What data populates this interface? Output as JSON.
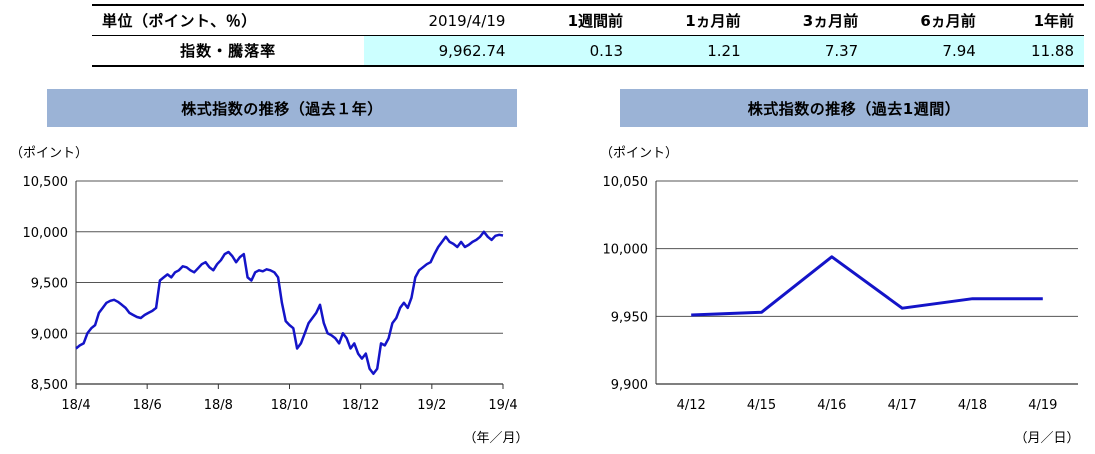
{
  "summary": {
    "header": [
      "単位（ポイント、％）",
      "2019/4/19",
      "1週間前",
      "1ヵ月前",
      "3ヵ月前",
      "6ヵ月前",
      "1年前"
    ],
    "row_label": "指数・騰落率",
    "values": [
      "9,962.74",
      "0.13",
      "1.21",
      "7.37",
      "7.94",
      "11.88"
    ]
  },
  "chart_data": [
    {
      "type": "line",
      "title": "株式指数の推移（過去１年）",
      "ylabel": "（ポイント）",
      "xlabel": "（年／月）",
      "ylim": [
        8500,
        10500
      ],
      "y_ticks": [
        "8,500",
        "9,000",
        "9,500",
        "10,000",
        "10,500"
      ],
      "y_tick_values": [
        8500,
        9000,
        9500,
        10000,
        10500
      ],
      "x_ticks": [
        "18/4",
        "18/6",
        "18/8",
        "18/10",
        "18/12",
        "19/2",
        "19/4"
      ],
      "color": "#1414c8",
      "grid": true,
      "series": [
        {
          "values": [
            8850,
            8880,
            8900,
            9000,
            9050,
            9080,
            9200,
            9250,
            9300,
            9320,
            9330,
            9310,
            9280,
            9250,
            9200,
            9180,
            9160,
            9150,
            9180,
            9200,
            9220,
            9250,
            9520,
            9550,
            9580,
            9550,
            9600,
            9620,
            9660,
            9650,
            9620,
            9600,
            9640,
            9680,
            9700,
            9650,
            9620,
            9680,
            9720,
            9780,
            9800,
            9760,
            9700,
            9750,
            9780,
            9550,
            9520,
            9600,
            9620,
            9610,
            9630,
            9620,
            9600,
            9550,
            9300,
            9120,
            9080,
            9050,
            8850,
            8900,
            9000,
            9100,
            9150,
            9200,
            9280,
            9100,
            9000,
            8980,
            8950,
            8900,
            9000,
            8950,
            8850,
            8900,
            8800,
            8750,
            8800,
            8650,
            8600,
            8650,
            8900,
            8880,
            8950,
            9100,
            9150,
            9250,
            9300,
            9250,
            9350,
            9550,
            9620,
            9650,
            9680,
            9700,
            9780,
            9850,
            9900,
            9950,
            9900,
            9880,
            9850,
            9900,
            9850,
            9870,
            9900,
            9920,
            9950,
            10000,
            9950,
            9920,
            9960,
            9970,
            9963
          ]
        }
      ]
    },
    {
      "type": "line",
      "title": "株式指数の推移（過去1週間）",
      "ylabel": "（ポイント）",
      "xlabel": "（月／日）",
      "ylim": [
        9900,
        10050
      ],
      "y_ticks": [
        "9,900",
        "9,950",
        "10,000",
        "10,050"
      ],
      "y_tick_values": [
        9900,
        9950,
        10000,
        10050
      ],
      "categories": [
        "4/12",
        "4/15",
        "4/16",
        "4/17",
        "4/18",
        "4/19"
      ],
      "color": "#1414c8",
      "grid": true,
      "series": [
        {
          "values": [
            9951,
            9953,
            9994,
            9956,
            9963,
            9963
          ]
        }
      ]
    }
  ]
}
